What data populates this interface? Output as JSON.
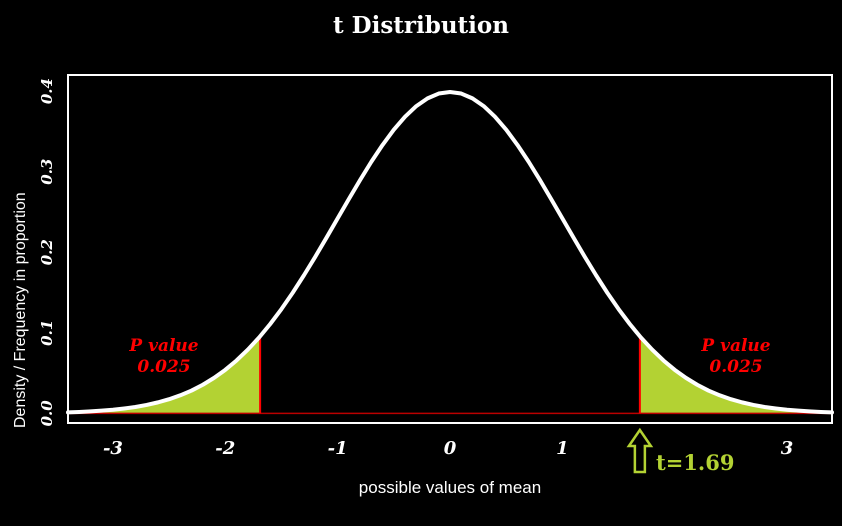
{
  "title": "t Distribution",
  "colors": {
    "background": "#000000",
    "title_text": "#ffffff",
    "axis_text": "#ffffff",
    "curve": "#ffffff",
    "frame": "#ffffff",
    "tail_fill": "#b3d233",
    "critical_line": "#ff0000",
    "baseline": "#bb0000",
    "p_value_text": "#ff0000",
    "annotation": "#b3d233"
  },
  "chart_data": {
    "type": "area",
    "title": "t Distribution",
    "xlabel": "possible values of mean",
    "ylabel": "Density / Frequency in proportion",
    "xlim": [
      -3.4,
      3.4
    ],
    "ylim": [
      -0.012,
      0.42
    ],
    "grid": false,
    "critical_value": 1.69,
    "tail_probability": 0.025,
    "x_ticks": [
      {
        "value": -3,
        "label": "-3"
      },
      {
        "value": -2,
        "label": "-2"
      },
      {
        "value": -1,
        "label": "-1"
      },
      {
        "value": 0,
        "label": "0"
      },
      {
        "value": 1,
        "label": "1"
      },
      {
        "value": 3,
        "label": "3"
      }
    ],
    "y_ticks": [
      {
        "value": 0.0,
        "label": "0.0"
      },
      {
        "value": 0.1,
        "label": "0.1"
      },
      {
        "value": 0.2,
        "label": "0.2"
      },
      {
        "value": 0.3,
        "label": "0.3"
      },
      {
        "value": 0.4,
        "label": "0.4"
      }
    ],
    "curve": {
      "x": [
        -3.4,
        -3.3,
        -3.2,
        -3.1,
        -3.0,
        -2.9,
        -2.8,
        -2.7,
        -2.6,
        -2.5,
        -2.4,
        -2.3,
        -2.2,
        -2.1,
        -2.0,
        -1.9,
        -1.8,
        -1.7,
        -1.6,
        -1.5,
        -1.4,
        -1.3,
        -1.2,
        -1.1,
        -1.0,
        -0.9,
        -0.8,
        -0.7,
        -0.6,
        -0.5,
        -0.4,
        -0.3,
        -0.2,
        -0.1,
        0.0,
        0.1,
        0.2,
        0.3,
        0.4,
        0.5,
        0.6,
        0.7,
        0.8,
        0.9,
        1.0,
        1.1,
        1.2,
        1.3,
        1.4,
        1.5,
        1.6,
        1.7,
        1.8,
        1.9,
        2.0,
        2.1,
        2.2,
        2.3,
        2.4,
        2.5,
        2.6,
        2.7,
        2.8,
        2.9,
        3.0,
        3.1,
        3.2,
        3.3,
        3.4
      ],
      "y": [
        0.0012,
        0.0017,
        0.0024,
        0.0033,
        0.0044,
        0.006,
        0.0079,
        0.0104,
        0.0136,
        0.0175,
        0.0224,
        0.0283,
        0.0355,
        0.044,
        0.054,
        0.0656,
        0.079,
        0.094,
        0.1109,
        0.1295,
        0.1497,
        0.1714,
        0.1942,
        0.2179,
        0.242,
        0.2661,
        0.2897,
        0.3123,
        0.3332,
        0.3521,
        0.3683,
        0.3814,
        0.391,
        0.397,
        0.3989,
        0.397,
        0.391,
        0.3814,
        0.3683,
        0.3521,
        0.3332,
        0.3123,
        0.2897,
        0.2661,
        0.242,
        0.2179,
        0.1942,
        0.1714,
        0.1497,
        0.1295,
        0.1109,
        0.094,
        0.079,
        0.0656,
        0.054,
        0.044,
        0.0355,
        0.0283,
        0.0224,
        0.0175,
        0.0136,
        0.0104,
        0.0079,
        0.006,
        0.0044,
        0.0033,
        0.0024,
        0.0017,
        0.0012
      ]
    },
    "annotations": {
      "left_tail": {
        "line1": "P value",
        "line2": "0.025"
      },
      "right_tail": {
        "line1": "P value",
        "line2": "0.025"
      },
      "critical_marker": {
        "label": "t=1.69"
      }
    }
  }
}
